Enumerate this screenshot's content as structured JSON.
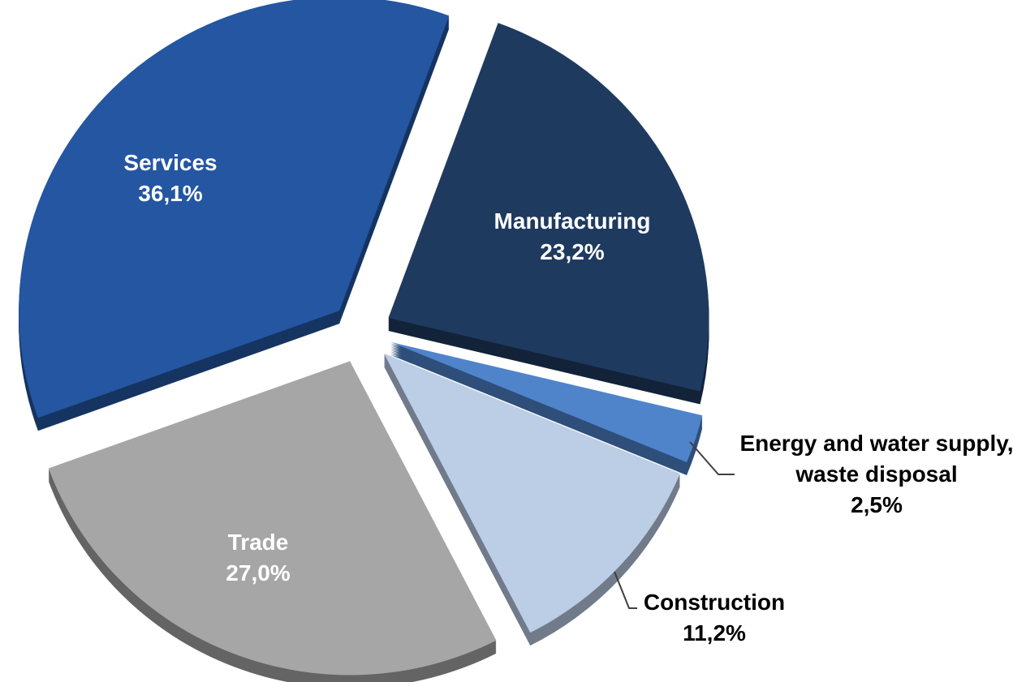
{
  "chart_data": {
    "type": "pie",
    "categories": [
      "Manufacturing",
      "Energy and water supply, waste disposal",
      "Construction",
      "Trade",
      "Services"
    ],
    "values": [
      23.2,
      2.5,
      11.2,
      27.0,
      36.1
    ],
    "value_labels": [
      "23,2%",
      "2,5%",
      "11,2%",
      "27,0%",
      "36,1%"
    ],
    "colors": [
      "#1f3a5f",
      "#4f84cb",
      "#bccde6",
      "#a6a6a6",
      "#2456a2"
    ]
  }
}
